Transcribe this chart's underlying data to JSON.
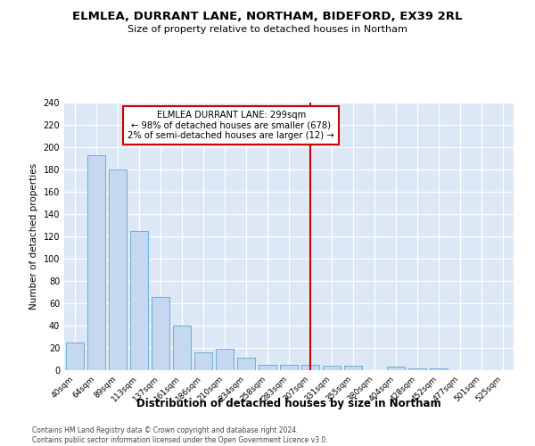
{
  "title": "ELMLEA, DURRANT LANE, NORTHAM, BIDEFORD, EX39 2RL",
  "subtitle": "Size of property relative to detached houses in Northam",
  "xlabel": "Distribution of detached houses by size in Northam",
  "ylabel": "Number of detached properties",
  "categories": [
    "40sqm",
    "64sqm",
    "89sqm",
    "113sqm",
    "137sqm",
    "161sqm",
    "186sqm",
    "210sqm",
    "234sqm",
    "258sqm",
    "283sqm",
    "307sqm",
    "331sqm",
    "355sqm",
    "380sqm",
    "404sqm",
    "428sqm",
    "452sqm",
    "477sqm",
    "501sqm",
    "525sqm"
  ],
  "values": [
    25,
    193,
    180,
    125,
    66,
    40,
    16,
    19,
    11,
    5,
    5,
    5,
    4,
    4,
    0,
    3,
    2,
    2,
    0,
    0,
    0
  ],
  "bar_color": "#c5d8f0",
  "bar_edge_color": "#6baed6",
  "vline_x_idx": 11,
  "vline_color": "#cc0000",
  "annotation_title": "ELMLEA DURRANT LANE: 299sqm",
  "annotation_line1": "← 98% of detached houses are smaller (678)",
  "annotation_line2": "2% of semi-detached houses are larger (12) →",
  "annotation_box_color": "#cc0000",
  "ylim": [
    0,
    240
  ],
  "yticks": [
    0,
    20,
    40,
    60,
    80,
    100,
    120,
    140,
    160,
    180,
    200,
    220,
    240
  ],
  "footer_line1": "Contains HM Land Registry data © Crown copyright and database right 2024.",
  "footer_line2": "Contains public sector information licensed under the Open Government Licence v3.0.",
  "fig_bg_color": "#ffffff",
  "plot_bg_color": "#dce8f5"
}
